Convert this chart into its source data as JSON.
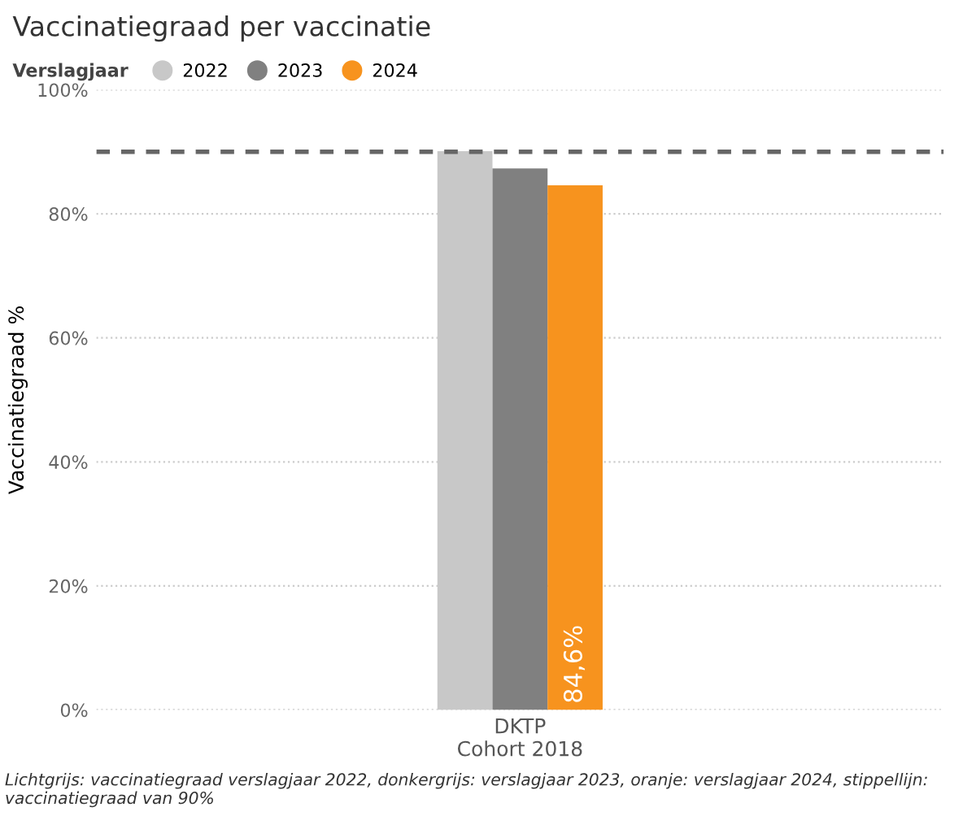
{
  "chart_data": {
    "type": "bar",
    "title": "Vaccinatiegraad per vaccinatie",
    "ylabel": "Vaccinatiegraad %",
    "legend_title": "Verslagjaar",
    "categories": [
      "DKTP\nCohort 2018"
    ],
    "series": [
      {
        "name": "2022",
        "color": "#c8c8c8",
        "values": [
          90.1
        ]
      },
      {
        "name": "2023",
        "color": "#808080",
        "values": [
          87.3
        ]
      },
      {
        "name": "2024",
        "color": "#f7931e",
        "values": [
          84.6
        ],
        "value_labels": [
          "84,6%"
        ]
      }
    ],
    "ylim": [
      0,
      100
    ],
    "yticks": [
      {
        "value": 0,
        "label": "0%"
      },
      {
        "value": 20,
        "label": "20%"
      },
      {
        "value": 40,
        "label": "40%"
      },
      {
        "value": 60,
        "label": "60%"
      },
      {
        "value": 80,
        "label": "80%"
      },
      {
        "value": 100,
        "label": "100%"
      }
    ],
    "grid": "y",
    "legend": "top left",
    "ref_lines": [
      {
        "axis": "y",
        "value": 90,
        "color": "#666666",
        "line_style": "dashed"
      }
    ],
    "annotations": [
      "Lichtgrijs: vaccinatiegraad verslagjaar 2022, donkergrijs: verslagjaar 2023, oranje: verslagjaar 2024, stippellijn: vaccinatiegraad van 90%"
    ]
  }
}
